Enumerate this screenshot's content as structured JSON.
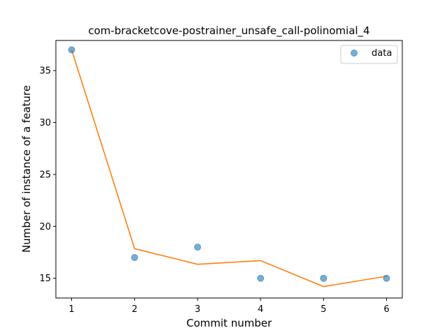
{
  "chart_data": {
    "type": "scatter",
    "title": "com-bracketcove-postrainer_unsafe_call-polinomial_4",
    "xlabel": "Commit number",
    "ylabel": "Number of instance of a feature",
    "xlim": [
      0.75,
      6.25
    ],
    "ylim": [
      13.1,
      37.9
    ],
    "xticks": [
      1,
      2,
      3,
      4,
      5,
      6
    ],
    "yticks": [
      15,
      20,
      25,
      30,
      35
    ],
    "grid": false,
    "legend": {
      "placement": "top-right",
      "entries": [
        "data"
      ]
    },
    "series": [
      {
        "name": "data",
        "kind": "scatter",
        "color": "#1f77b4",
        "x": [
          1,
          2,
          3,
          4,
          5,
          6
        ],
        "y": [
          37,
          17,
          18,
          15,
          15,
          15
        ]
      },
      {
        "kind": "line",
        "color": "#ff7f0e",
        "x": [
          1,
          2,
          3,
          4,
          5,
          6
        ],
        "y": [
          37.0,
          17.85,
          16.35,
          16.7,
          14.2,
          15.2
        ]
      }
    ]
  }
}
